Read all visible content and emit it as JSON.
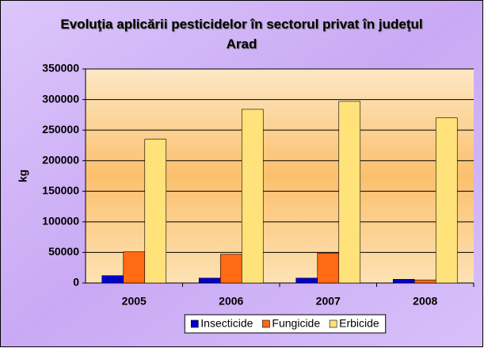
{
  "chart_data": {
    "type": "bar",
    "title": "Evoluţia aplicării pesticidelor în sectorul privat în judeţul Arad",
    "y_label": "kg",
    "categories": [
      "2005",
      "2006",
      "2007",
      "2008"
    ],
    "series": [
      {
        "name": "Insecticide",
        "color": "#0000cc",
        "values": [
          12000,
          8000,
          8000,
          6000
        ]
      },
      {
        "name": "Fungicide",
        "color": "#ff6a13",
        "values": [
          51000,
          47000,
          49000,
          5000
        ]
      },
      {
        "name": "Erbicide",
        "color": "#ffe27a",
        "values": [
          235000,
          284000,
          297000,
          270000
        ]
      }
    ],
    "ylim": [
      0,
      350000
    ],
    "yticks": [
      0,
      50000,
      100000,
      150000,
      200000,
      250000,
      300000,
      350000
    ],
    "grid": true,
    "legend": "bottom"
  }
}
